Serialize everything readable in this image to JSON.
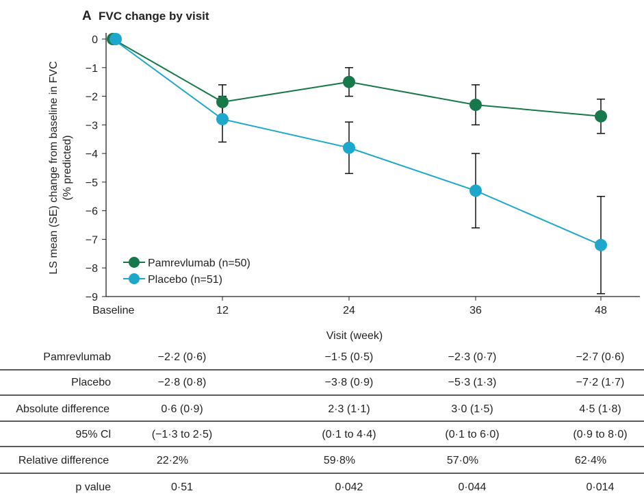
{
  "chart_data": {
    "type": "line",
    "title": "FVC change by visit",
    "panel_label": "A",
    "xlabel": "Visit (week)",
    "ylabel_lines": [
      "LS mean (SE) change from baseline in FVC",
      "(% predicted)"
    ],
    "categories": [
      "Baseline",
      "12",
      "24",
      "36",
      "48"
    ],
    "x": [
      0,
      12,
      24,
      36,
      48
    ],
    "xlim": [
      0,
      48
    ],
    "ylim": [
      -9,
      0
    ],
    "yticks": [
      0,
      -1,
      -2,
      -3,
      -4,
      -5,
      -6,
      -7,
      -8,
      -9
    ],
    "ytick_labels": [
      "0",
      "−1",
      "−2",
      "−3",
      "−4",
      "−5",
      "−6",
      "−7",
      "−8",
      "−9"
    ],
    "grid": false,
    "legend_position": "bottom-left",
    "series": [
      {
        "name": "Pamrevlumab (n=50)",
        "color": "#17784a",
        "values": [
          0,
          -2.2,
          -1.5,
          -2.3,
          -2.7
        ],
        "se": [
          0,
          0.6,
          0.5,
          0.7,
          0.6
        ]
      },
      {
        "name": "Placebo (n=51)",
        "color": "#1ea7cc",
        "values": [
          0,
          -2.8,
          -3.8,
          -5.3,
          -7.2
        ],
        "se": [
          0,
          0.8,
          0.9,
          1.3,
          1.7
        ]
      }
    ]
  },
  "table": {
    "rows": [
      {
        "label": "Pamrevlumab",
        "cells": [
          "−2·2 (0·6)",
          "−1·5 (0·5)",
          "−2·3 (0·7)",
          "−2·7 (0·6)"
        ]
      },
      {
        "label": "Placebo",
        "cells": [
          "−2·8 (0·8)",
          "−3·8 (0·9)",
          "−5·3 (1·3)",
          "−7·2 (1·7)"
        ]
      },
      {
        "label": "Absolute difference",
        "cells": [
          "0·6 (0·9)",
          "2·3 (1·1)",
          "3·0 (1·5)",
          "4·5 (1·8)"
        ]
      },
      {
        "label": "95% Cl",
        "cells": [
          "(−1·3 to 2·5)",
          "(0·1 to 4·4)",
          "(0·1 to 6·0)",
          "(0·9 to 8·0)"
        ]
      },
      {
        "label": "Relative difference",
        "cells": [
          "22·2%",
          "59·8%",
          "57·0%",
          "62·4%"
        ]
      },
      {
        "label": "p value",
        "cells": [
          "0·51",
          "0·042",
          "0·044",
          "0·014"
        ]
      }
    ]
  }
}
